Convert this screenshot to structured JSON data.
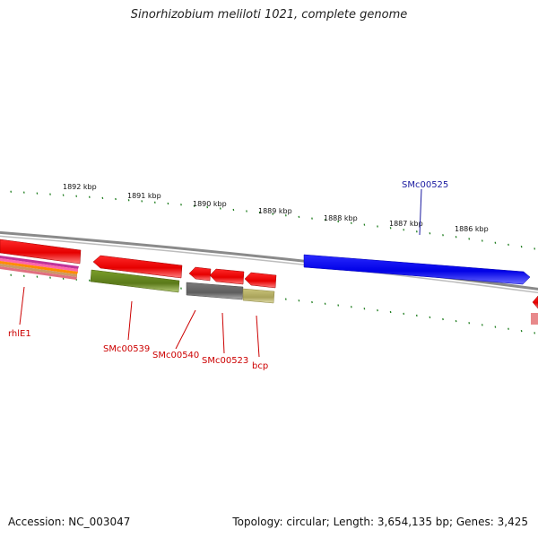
{
  "title": "Sinorhizobium meliloti 1021, complete genome",
  "footer": {
    "accession": "Accession: NC_003047",
    "summary": "Topology: circular; Length: 3,654,135 bp; Genes: 3,425"
  },
  "scale_labels": [
    "1892 kbp",
    "1891 kbp",
    "1890 kbp",
    "1889 kbp",
    "1888 kbp",
    "1887 kbp",
    "1886 kbp"
  ],
  "gene_labels": [
    {
      "name": "SMc00525",
      "color": "#1a1aa0",
      "strand": "forward"
    },
    {
      "name": "rhlE1",
      "color": "#cc0000",
      "strand": "reverse"
    },
    {
      "name": "SMc00539",
      "color": "#cc0000",
      "strand": "reverse"
    },
    {
      "name": "SMc00540",
      "color": "#cc0000",
      "strand": "reverse"
    },
    {
      "name": "SMc00523",
      "color": "#cc0000",
      "strand": "reverse"
    },
    {
      "name": "bcp",
      "color": "#cc0000",
      "strand": "reverse"
    }
  ],
  "colors": {
    "backbone": "#8a8a8a",
    "forward_gene": "#0000ee",
    "reverse_gene": "#ee0000",
    "olive_gene": "#6b8e23",
    "gray_gene": "#6e6e6e",
    "khaki_gene": "#bdb76b",
    "tick": "#1e7d1e"
  }
}
